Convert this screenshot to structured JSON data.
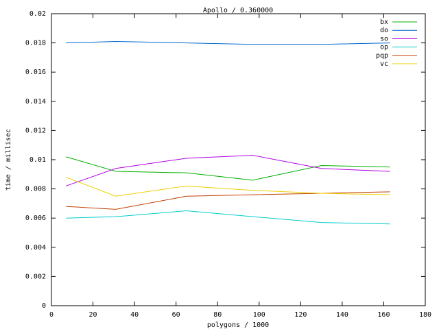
{
  "chart_data": {
    "type": "line",
    "title": "Apollo / 0.360000",
    "x_label": "polygons / 1000",
    "y_label": "time / millisec",
    "x": [
      7,
      31,
      65,
      97,
      130,
      163
    ],
    "series": [
      {
        "name": "bx",
        "color": "#00b000",
        "values": [
          0.0102,
          0.0092,
          0.0091,
          0.0086,
          0.0096,
          0.0095
        ]
      },
      {
        "name": "do",
        "color": "#0066cc",
        "values": [
          0.018,
          0.0181,
          0.018,
          0.0179,
          0.0179,
          0.018
        ]
      },
      {
        "name": "so",
        "color": "#b000e0",
        "values": [
          0.0082,
          0.0094,
          0.0101,
          0.0103,
          0.0094,
          0.0092
        ]
      },
      {
        "name": "op",
        "color": "#00cccc",
        "values": [
          0.006,
          0.0061,
          0.0065,
          0.0061,
          0.0057,
          0.0056
        ]
      },
      {
        "name": "pqp",
        "color": "#c04000",
        "values": [
          0.0068,
          0.0066,
          0.0075,
          0.0076,
          0.0077,
          0.0078
        ]
      },
      {
        "name": "vc",
        "color": "#f0d000",
        "values": [
          0.0088,
          0.0075,
          0.0082,
          0.0079,
          0.0077,
          0.0076
        ]
      }
    ],
    "xlim": [
      0,
      180
    ],
    "xticks": [
      0,
      20,
      40,
      60,
      80,
      100,
      120,
      140,
      160,
      180
    ],
    "ylim": [
      0,
      0.02
    ],
    "yticks": [
      0,
      0.002,
      0.004,
      0.006,
      0.008,
      0.01,
      0.012,
      0.014,
      0.016,
      0.018,
      0.02
    ],
    "legend": "top-right",
    "grid": false
  }
}
